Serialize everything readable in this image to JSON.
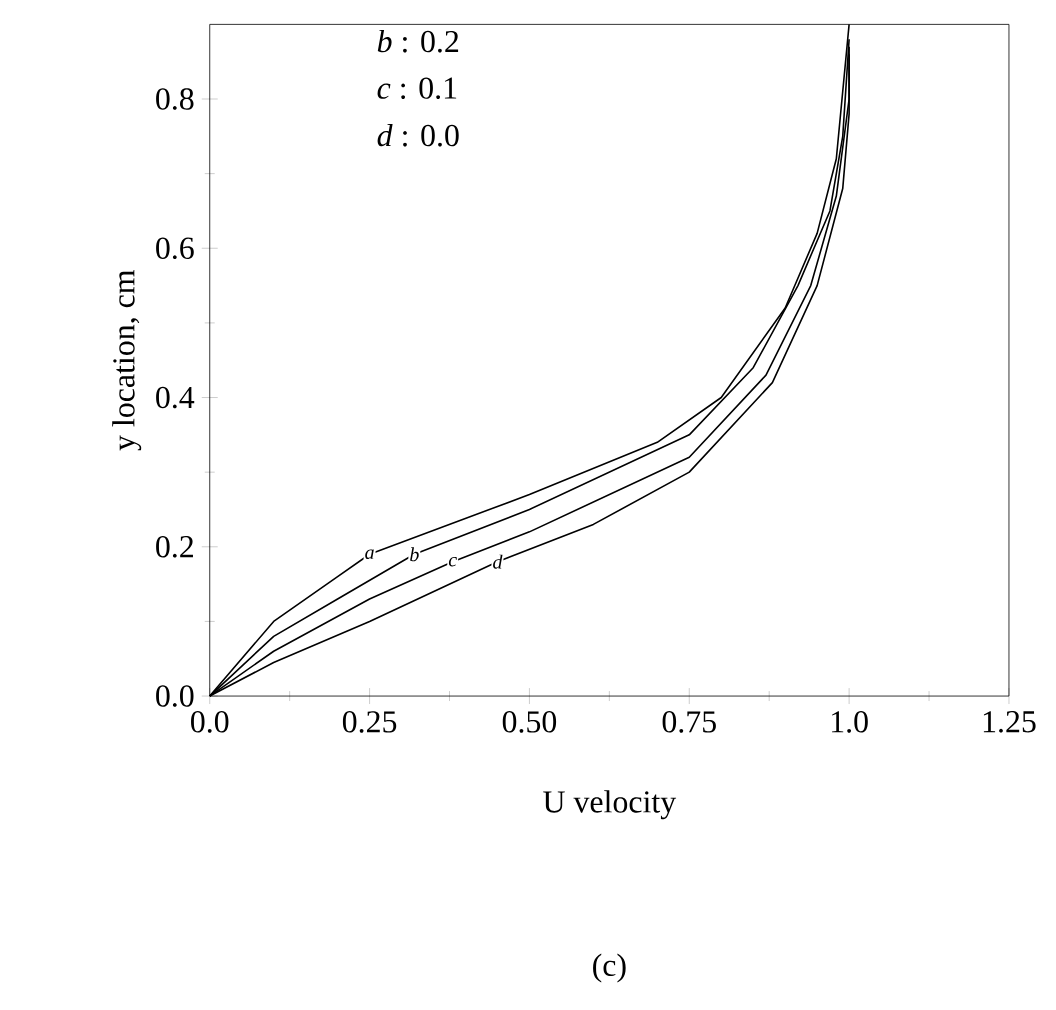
{
  "chart_data": {
    "type": "line",
    "title": "(c)",
    "xlabel": "U velocity",
    "ylabel": "y location, cm",
    "xlim": [
      0,
      1.25
    ],
    "ylim": [
      0,
      0.9
    ],
    "xticks": [
      {
        "value": 0,
        "label": "0.0"
      },
      0.25,
      {
        "value": 0.5,
        "label": "0.50"
      },
      0.75,
      {
        "value": 1.0,
        "label": "1.0"
      },
      1.25
    ],
    "yticks": [
      {
        "value": 0,
        "label": "0.0"
      },
      0.2,
      0.4,
      0.6,
      0.8
    ],
    "annotations": [
      "*b* : 0.2",
      "*c* : 0.1",
      "*d* : 0.0"
    ],
    "grid": false,
    "marker": "none",
    "line_style": "solid",
    "series": [
      {
        "name": "a",
        "color": "#000000",
        "x": [
          0,
          0.1,
          0.2,
          0.25,
          0.5,
          0.7,
          0.8,
          0.9,
          0.95,
          0.98,
          1.0
        ],
        "values": [
          0,
          0.1,
          0.16,
          0.19,
          0.27,
          0.34,
          0.4,
          0.52,
          0.62,
          0.72,
          0.9
        ]
      },
      {
        "name": "b",
        "color": "#000000",
        "x": [
          0,
          0.1,
          0.2,
          0.32,
          0.5,
          0.75,
          0.85,
          0.92,
          0.97,
          0.99,
          1.0
        ],
        "values": [
          0,
          0.08,
          0.13,
          0.19,
          0.25,
          0.35,
          0.44,
          0.55,
          0.65,
          0.75,
          0.88
        ]
      },
      {
        "name": "c",
        "color": "#000000",
        "x": [
          0,
          0.1,
          0.25,
          0.38,
          0.5,
          0.75,
          0.87,
          0.94,
          0.98,
          1.0,
          1.0
        ],
        "values": [
          0,
          0.06,
          0.13,
          0.18,
          0.22,
          0.32,
          0.43,
          0.55,
          0.67,
          0.8,
          0.87
        ]
      },
      {
        "name": "d",
        "color": "#000000",
        "x": [
          0,
          0.1,
          0.25,
          0.45,
          0.6,
          0.75,
          0.88,
          0.95,
          0.99,
          1.0,
          1.0
        ],
        "values": [
          0,
          0.045,
          0.1,
          0.18,
          0.23,
          0.3,
          0.42,
          0.55,
          0.68,
          0.78,
          0.86
        ]
      }
    ]
  }
}
